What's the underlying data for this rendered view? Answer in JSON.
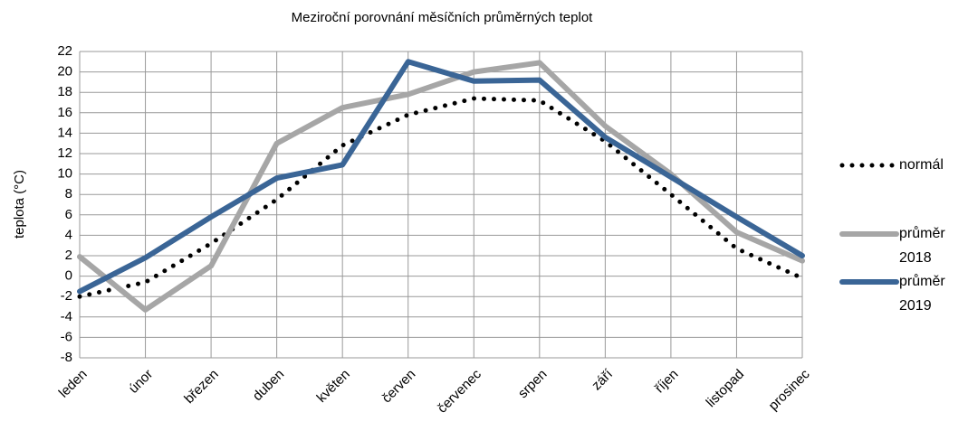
{
  "chart_data": {
    "type": "line",
    "title": "Meziroční porovnání měsíčních průměrných teplot",
    "y_label": "teplota (°C)",
    "categories": [
      "leden",
      "únor",
      "březen",
      "duben",
      "květen",
      "červen",
      "červenec",
      "srpen",
      "září",
      "říjen",
      "listopad",
      "prosinec"
    ],
    "series": [
      {
        "name": "normál",
        "color": "#000000",
        "style": "dotted",
        "values": [
          -2.0,
          -0.6,
          3.2,
          7.5,
          12.8,
          15.8,
          17.4,
          17.2,
          13.2,
          8.0,
          2.7,
          -0.2
        ]
      },
      {
        "name": "průměr 2018",
        "color": "#a6a6a6",
        "style": "solid",
        "values": [
          1.9,
          -3.3,
          1.0,
          13.0,
          16.5,
          17.8,
          20.0,
          20.9,
          14.7,
          10.0,
          4.3,
          1.5
        ]
      },
      {
        "name": "průměr 2019",
        "color": "#3a6596",
        "style": "solid",
        "values": [
          -1.5,
          1.8,
          5.8,
          9.6,
          10.9,
          21.0,
          19.1,
          19.2,
          13.6,
          9.7,
          5.8,
          2.0
        ]
      }
    ],
    "ylim": [
      -8,
      22
    ],
    "yticks": [
      -8,
      -6,
      -4,
      -2,
      0,
      2,
      4,
      6,
      8,
      10,
      12,
      14,
      16,
      18,
      20,
      22
    ],
    "grid": true,
    "legend": "right"
  }
}
